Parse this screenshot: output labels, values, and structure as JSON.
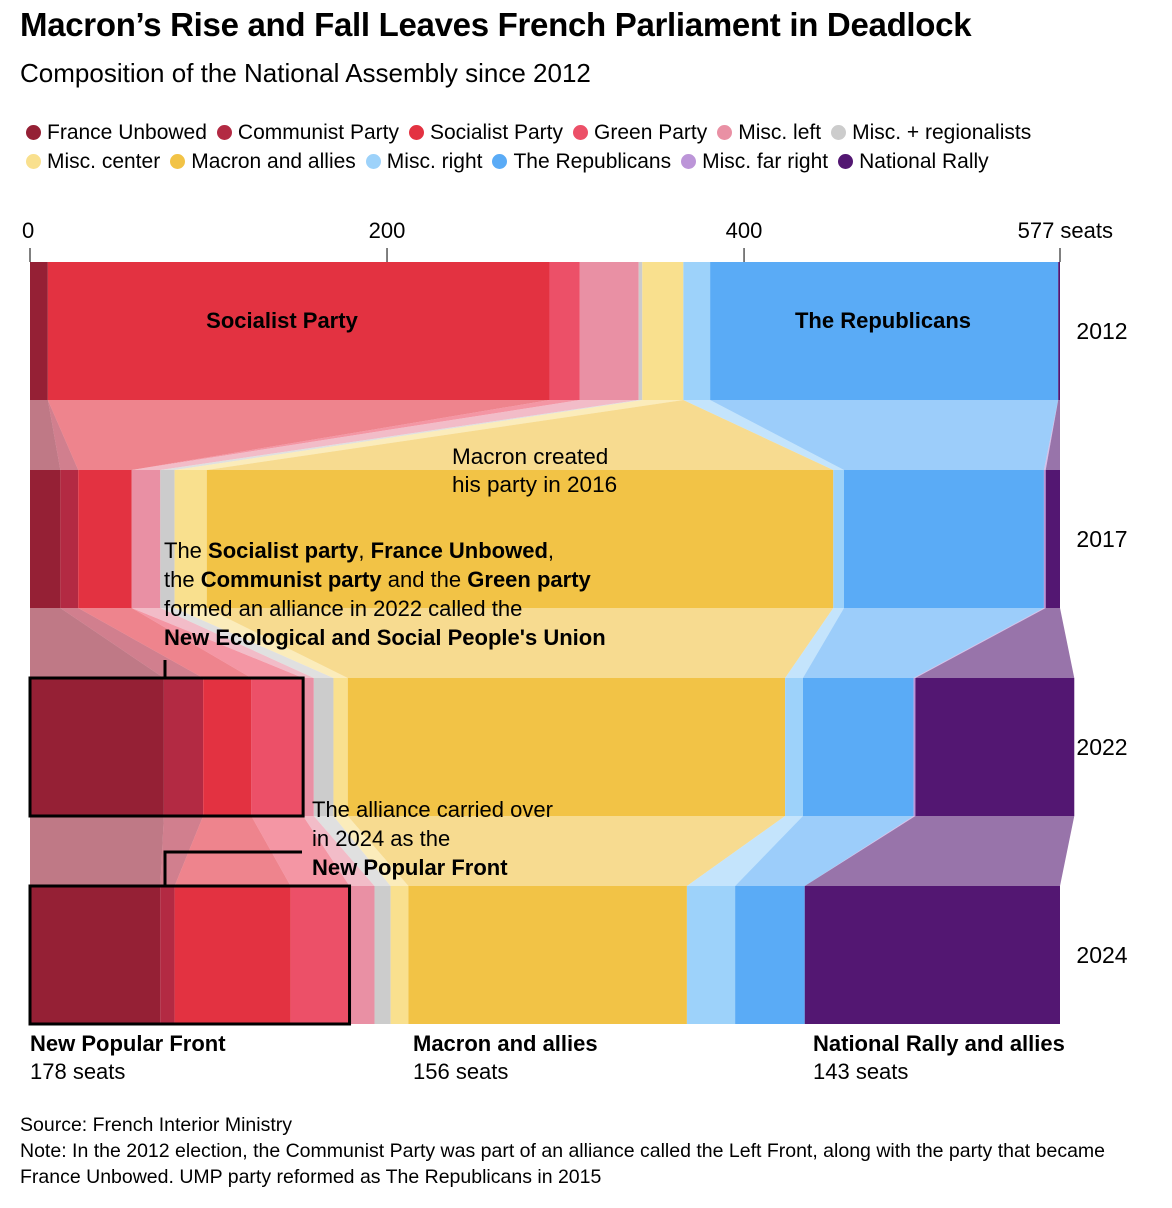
{
  "title": "Macron’s Rise and Fall Leaves French Parliament in Deadlock",
  "subtitle": "Composition of the National Assembly since 2012",
  "legend": [
    {
      "name": "France Unbowed",
      "color": "#952035"
    },
    {
      "name": "Communist Party",
      "color": "#b32a43"
    },
    {
      "name": "Socialist Party",
      "color": "#e33241"
    },
    {
      "name": "Green Party",
      "color": "#ec5068"
    },
    {
      "name": "Misc. left",
      "color": "#e990a4"
    },
    {
      "name": "Misc. + regionalists",
      "color": "#cccccc"
    },
    {
      "name": "Misc. center",
      "color": "#f9e08e"
    },
    {
      "name": "Macron and allies",
      "color": "#f2c346"
    },
    {
      "name": "Misc. right",
      "color": "#9dd2fa"
    },
    {
      "name": "The Republicans",
      "color": "#5aabf6"
    },
    {
      "name": "Misc. far right",
      "color": "#bc95d8"
    },
    {
      "name": "National Rally",
      "color": "#531772"
    }
  ],
  "chart_data": {
    "type": "bar",
    "layout": "stacked horizontal bars with flows",
    "xlim": [
      0,
      577
    ],
    "x_ticks": [
      "0",
      "200",
      "400",
      "577 seats"
    ],
    "years": [
      "2012",
      "2017",
      "2022",
      "2024"
    ],
    "series": [
      {
        "name": "France Unbowed",
        "values": [
          10,
          17,
          75,
          73
        ]
      },
      {
        "name": "Communist Party",
        "values": [
          0,
          10,
          22,
          8
        ]
      },
      {
        "name": "Socialist Party",
        "values": [
          281,
          30,
          27,
          65
        ]
      },
      {
        "name": "Green Party",
        "values": [
          17,
          0,
          29,
          33
        ]
      },
      {
        "name": "Misc. left",
        "values": [
          33,
          16,
          6,
          14
        ]
      },
      {
        "name": "Misc. + regionalists",
        "values": [
          2,
          8,
          11,
          9
        ]
      },
      {
        "name": "Misc. center",
        "values": [
          23,
          18,
          8,
          10
        ]
      },
      {
        "name": "Macron and allies",
        "values": [
          0,
          351,
          245,
          156
        ]
      },
      {
        "name": "Misc. right",
        "values": [
          15,
          6,
          10,
          27
        ]
      },
      {
        "name": "The Republicans",
        "values": [
          195,
          112,
          62,
          39
        ]
      },
      {
        "name": "Misc. far right",
        "values": [
          0,
          1,
          1,
          0
        ]
      },
      {
        "name": "National Rally",
        "values": [
          1,
          8,
          89,
          143
        ]
      }
    ],
    "bar_labels": [
      {
        "year": "2012",
        "text": "Socialist Party"
      },
      {
        "year": "2012",
        "text": "The Republicans"
      }
    ],
    "annotations": {
      "macron": [
        "Macron created",
        "his party in 2016"
      ],
      "nupes": [
        [
          {
            "t": "The "
          },
          {
            "t": "Socialist party",
            "b": true
          },
          {
            "t": ", "
          },
          {
            "t": "France Unbowed",
            "b": true
          },
          {
            "t": ","
          }
        ],
        [
          {
            "t": "the "
          },
          {
            "t": "Communist party",
            "b": true
          },
          {
            "t": " and the "
          },
          {
            "t": "Green party",
            "b": true
          }
        ],
        [
          {
            "t": "formed an alliance in 2022 called the"
          }
        ],
        [
          {
            "t": "New Ecological and Social People's Union",
            "b": true
          }
        ]
      ],
      "npf": [
        [
          {
            "t": "The alliance carried over"
          }
        ],
        [
          {
            "t": "in 2024 as the"
          }
        ],
        [
          {
            "t": "New Popular Front",
            "b": true
          }
        ]
      ]
    },
    "totals": [
      {
        "name": "New Popular Front",
        "seats": "178 seats"
      },
      {
        "name": "Macron and allies",
        "seats": "156 seats"
      },
      {
        "name": "National Rally and allies",
        "seats": "143 seats"
      }
    ]
  },
  "source": "Source: French Interior Ministry",
  "note": "Note: In the 2012 election, the Communist Party was part of an alliance called the Left Front, along with the party that became France Unbowed. UMP party reformed as The Republicans in 2015"
}
